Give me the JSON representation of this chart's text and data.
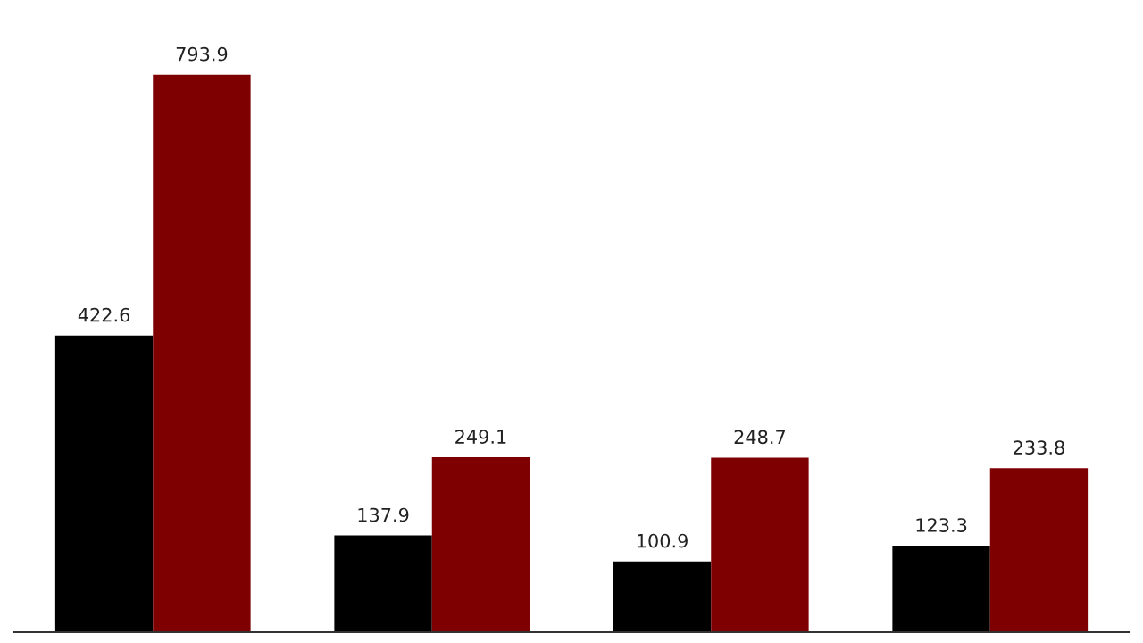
{
  "chart_data": {
    "type": "bar",
    "categories": [
      null,
      null,
      null,
      null
    ],
    "series": [
      {
        "color": "#000000",
        "values": [
          422.6,
          137.9,
          100.9,
          123.3
        ]
      },
      {
        "color": "#7f0000",
        "values": [
          793.9,
          249.1,
          248.7,
          233.8
        ]
      }
    ],
    "data_labels": true,
    "tick_labels": false,
    "grid": false,
    "legend": false
  }
}
